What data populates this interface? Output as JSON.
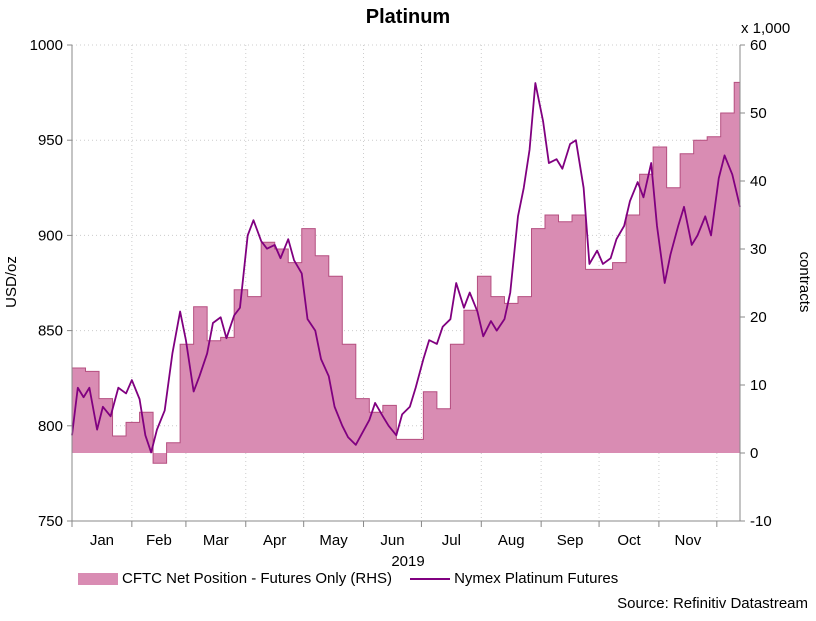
{
  "chart_data": {
    "type": "line",
    "title": "Platinum",
    "xlabel": "2019",
    "ylabel_left": "USD/oz",
    "ylabel_right": "contracts",
    "right_multiplier": "x 1,000",
    "x_ticks": [
      "Jan",
      "Feb",
      "Mar",
      "Apr",
      "May",
      "Jun",
      "Jul",
      "Aug",
      "Sep",
      "Oct",
      "Nov"
    ],
    "ylim_left": [
      750,
      1000
    ],
    "yticks_left": [
      750,
      800,
      850,
      900,
      950,
      1000
    ],
    "ylim_right": [
      -10,
      60
    ],
    "yticks_right": [
      -10,
      0,
      10,
      20,
      30,
      40,
      50,
      60
    ],
    "grid": true,
    "legend_position": "bottom",
    "series": [
      {
        "name": "CFTC Net Position - Futures Only (RHS)",
        "kind": "area",
        "axis": "right",
        "color": "#d98cb3",
        "edge_color": "#b54f80",
        "values": [
          [
            "2019-01-01",
            12.5
          ],
          [
            "2019-01-08",
            12.0
          ],
          [
            "2019-01-15",
            8.0
          ],
          [
            "2019-01-22",
            2.5
          ],
          [
            "2019-01-29",
            4.5
          ],
          [
            "2019-02-05",
            6.0
          ],
          [
            "2019-02-12",
            -1.5
          ],
          [
            "2019-02-19",
            1.5
          ],
          [
            "2019-02-26",
            16.0
          ],
          [
            "2019-03-05",
            21.5
          ],
          [
            "2019-03-12",
            16.5
          ],
          [
            "2019-03-19",
            17.0
          ],
          [
            "2019-03-26",
            24.0
          ],
          [
            "2019-04-02",
            23.0
          ],
          [
            "2019-04-09",
            31.0
          ],
          [
            "2019-04-16",
            30.0
          ],
          [
            "2019-04-23",
            28.0
          ],
          [
            "2019-04-30",
            33.0
          ],
          [
            "2019-05-07",
            29.0
          ],
          [
            "2019-05-14",
            26.0
          ],
          [
            "2019-05-21",
            16.0
          ],
          [
            "2019-05-28",
            8.0
          ],
          [
            "2019-06-04",
            6.0
          ],
          [
            "2019-06-11",
            7.0
          ],
          [
            "2019-06-18",
            2.0
          ],
          [
            "2019-06-25",
            2.0
          ],
          [
            "2019-07-02",
            9.0
          ],
          [
            "2019-07-09",
            6.5
          ],
          [
            "2019-07-16",
            16.0
          ],
          [
            "2019-07-23",
            21.0
          ],
          [
            "2019-07-30",
            26.0
          ],
          [
            "2019-08-06",
            23.0
          ],
          [
            "2019-08-13",
            22.0
          ],
          [
            "2019-08-20",
            23.0
          ],
          [
            "2019-08-27",
            33.0
          ],
          [
            "2019-09-03",
            35.0
          ],
          [
            "2019-09-10",
            34.0
          ],
          [
            "2019-09-17",
            35.0
          ],
          [
            "2019-09-24",
            27.0
          ],
          [
            "2019-10-01",
            27.0
          ],
          [
            "2019-10-08",
            28.0
          ],
          [
            "2019-10-15",
            35.0
          ],
          [
            "2019-10-22",
            41.0
          ],
          [
            "2019-10-29",
            45.0
          ],
          [
            "2019-11-05",
            39.0
          ],
          [
            "2019-11-12",
            44.0
          ],
          [
            "2019-11-19",
            46.0
          ],
          [
            "2019-11-26",
            46.5
          ],
          [
            "2019-12-03",
            50.0
          ],
          [
            "2019-12-10",
            54.5
          ],
          [
            "2019-12-13",
            54.5
          ]
        ]
      },
      {
        "name": "Nymex Platinum Futures",
        "kind": "line",
        "axis": "left",
        "color": "#800080",
        "values": [
          [
            "2019-01-01",
            795
          ],
          [
            "2019-01-04",
            820
          ],
          [
            "2019-01-07",
            815
          ],
          [
            "2019-01-10",
            820
          ],
          [
            "2019-01-14",
            798
          ],
          [
            "2019-01-17",
            810
          ],
          [
            "2019-01-21",
            805
          ],
          [
            "2019-01-25",
            820
          ],
          [
            "2019-01-29",
            817
          ],
          [
            "2019-02-01",
            824
          ],
          [
            "2019-02-05",
            814
          ],
          [
            "2019-02-08",
            795
          ],
          [
            "2019-02-11",
            786
          ],
          [
            "2019-02-14",
            798
          ],
          [
            "2019-02-18",
            808
          ],
          [
            "2019-02-22",
            838
          ],
          [
            "2019-02-26",
            860
          ],
          [
            "2019-03-01",
            845
          ],
          [
            "2019-03-05",
            818
          ],
          [
            "2019-03-08",
            826
          ],
          [
            "2019-03-12",
            838
          ],
          [
            "2019-03-15",
            854
          ],
          [
            "2019-03-19",
            857
          ],
          [
            "2019-03-22",
            846
          ],
          [
            "2019-03-26",
            858
          ],
          [
            "2019-03-29",
            862
          ],
          [
            "2019-04-02",
            900
          ],
          [
            "2019-04-05",
            908
          ],
          [
            "2019-04-09",
            897
          ],
          [
            "2019-04-12",
            893
          ],
          [
            "2019-04-16",
            895
          ],
          [
            "2019-04-19",
            888
          ],
          [
            "2019-04-23",
            898
          ],
          [
            "2019-04-26",
            887
          ],
          [
            "2019-04-30",
            880
          ],
          [
            "2019-05-03",
            856
          ],
          [
            "2019-05-07",
            850
          ],
          [
            "2019-05-10",
            835
          ],
          [
            "2019-05-14",
            826
          ],
          [
            "2019-05-17",
            810
          ],
          [
            "2019-05-21",
            800
          ],
          [
            "2019-05-24",
            794
          ],
          [
            "2019-05-28",
            790
          ],
          [
            "2019-06-04",
            803
          ],
          [
            "2019-06-07",
            812
          ],
          [
            "2019-06-11",
            805
          ],
          [
            "2019-06-14",
            800
          ],
          [
            "2019-06-18",
            795
          ],
          [
            "2019-06-21",
            806
          ],
          [
            "2019-06-25",
            810
          ],
          [
            "2019-06-28",
            820
          ],
          [
            "2019-07-02",
            835
          ],
          [
            "2019-07-05",
            845
          ],
          [
            "2019-07-09",
            843
          ],
          [
            "2019-07-12",
            852
          ],
          [
            "2019-07-16",
            856
          ],
          [
            "2019-07-19",
            875
          ],
          [
            "2019-07-23",
            862
          ],
          [
            "2019-07-26",
            870
          ],
          [
            "2019-07-30",
            860
          ],
          [
            "2019-08-02",
            847
          ],
          [
            "2019-08-06",
            855
          ],
          [
            "2019-08-09",
            850
          ],
          [
            "2019-08-13",
            856
          ],
          [
            "2019-08-16",
            870
          ],
          [
            "2019-08-20",
            910
          ],
          [
            "2019-08-23",
            925
          ],
          [
            "2019-08-26",
            945
          ],
          [
            "2019-08-29",
            980
          ],
          [
            "2019-09-02",
            960
          ],
          [
            "2019-09-05",
            938
          ],
          [
            "2019-09-09",
            940
          ],
          [
            "2019-09-12",
            935
          ],
          [
            "2019-09-16",
            948
          ],
          [
            "2019-09-19",
            950
          ],
          [
            "2019-09-23",
            925
          ],
          [
            "2019-09-26",
            885
          ],
          [
            "2019-09-30",
            892
          ],
          [
            "2019-10-03",
            885
          ],
          [
            "2019-10-07",
            888
          ],
          [
            "2019-10-10",
            898
          ],
          [
            "2019-10-14",
            905
          ],
          [
            "2019-10-17",
            918
          ],
          [
            "2019-10-21",
            928
          ],
          [
            "2019-10-24",
            920
          ],
          [
            "2019-10-28",
            938
          ],
          [
            "2019-10-31",
            905
          ],
          [
            "2019-11-04",
            875
          ],
          [
            "2019-11-07",
            890
          ],
          [
            "2019-11-11",
            905
          ],
          [
            "2019-11-14",
            915
          ],
          [
            "2019-11-18",
            895
          ],
          [
            "2019-11-21",
            900
          ],
          [
            "2019-11-25",
            910
          ],
          [
            "2019-11-28",
            900
          ],
          [
            "2019-12-02",
            930
          ],
          [
            "2019-12-05",
            942
          ],
          [
            "2019-12-09",
            932
          ],
          [
            "2019-12-13",
            915
          ]
        ]
      }
    ],
    "source": "Source: Refinitiv Datastream"
  }
}
